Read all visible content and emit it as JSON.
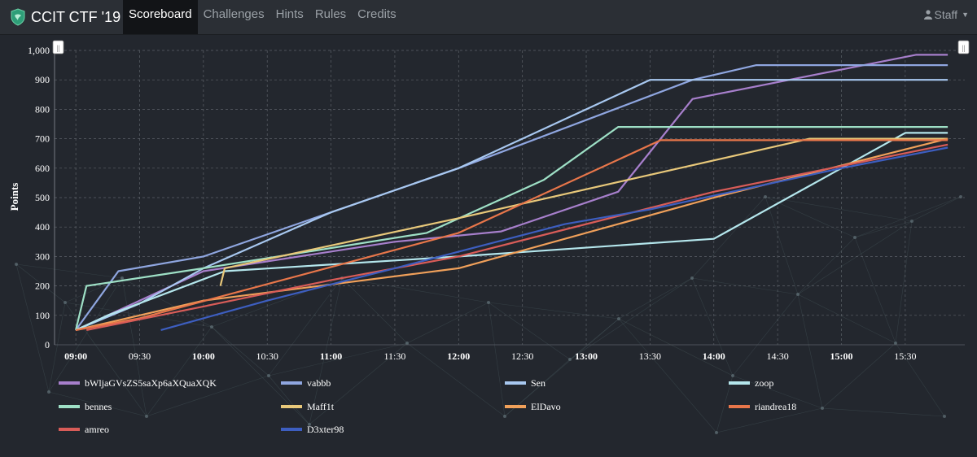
{
  "app": {
    "title": "CCIT CTF '19",
    "nav": [
      {
        "label": "Scoreboard",
        "active": true
      },
      {
        "label": "Challenges",
        "active": false
      },
      {
        "label": "Hints",
        "active": false
      },
      {
        "label": "Rules",
        "active": false
      },
      {
        "label": "Credits",
        "active": false
      }
    ],
    "user_menu": "Staff",
    "colors": {
      "brand_icon": "#2e9e78",
      "nav_bg": "#2b2f35",
      "active_bg": "#121417",
      "page_bg": "#23272e"
    }
  },
  "range_handles": {
    "left": "||",
    "right": "||"
  },
  "chart_data": {
    "type": "line",
    "ylabel": "Points",
    "xlabel": "",
    "ylim": [
      0,
      1000
    ],
    "yticks": [
      0,
      100,
      200,
      300,
      400,
      500,
      600,
      700,
      800,
      900,
      1000
    ],
    "ytick_labels": [
      "0",
      "100",
      "200",
      "300",
      "400",
      "500",
      "600",
      "700",
      "800",
      "900",
      "1,000"
    ],
    "xlim": [
      "08:50",
      "15:58"
    ],
    "xticks": [
      {
        "label": "09:00",
        "bold": true
      },
      {
        "label": "09:30",
        "bold": false
      },
      {
        "label": "10:00",
        "bold": true
      },
      {
        "label": "10:30",
        "bold": false
      },
      {
        "label": "11:00",
        "bold": true
      },
      {
        "label": "11:30",
        "bold": false
      },
      {
        "label": "12:00",
        "bold": true
      },
      {
        "label": "12:30",
        "bold": false
      },
      {
        "label": "13:00",
        "bold": true
      },
      {
        "label": "13:30",
        "bold": false
      },
      {
        "label": "14:00",
        "bold": true
      },
      {
        "label": "14:30",
        "bold": false
      },
      {
        "label": "15:00",
        "bold": true
      },
      {
        "label": "15:30",
        "bold": false
      }
    ],
    "grid": true,
    "legend": "bottom",
    "series": [
      {
        "name": "bWljaGVsZS5saXp6aXQuaXQK",
        "color": "#a77fcc",
        "points": [
          [
            "09:00",
            50
          ],
          [
            "09:30",
            150
          ],
          [
            "10:00",
            250
          ],
          [
            "11:30",
            350
          ],
          [
            "12:20",
            385
          ],
          [
            "13:15",
            520
          ],
          [
            "13:50",
            835
          ],
          [
            "15:35",
            985
          ],
          [
            "15:50",
            985
          ]
        ]
      },
      {
        "name": "vabbb",
        "color": "#8fa6e0",
        "points": [
          [
            "09:00",
            50
          ],
          [
            "09:20",
            250
          ],
          [
            "10:00",
            300
          ],
          [
            "12:00",
            600
          ],
          [
            "13:50",
            900
          ],
          [
            "14:20",
            950
          ],
          [
            "15:50",
            950
          ]
        ]
      },
      {
        "name": "Sen",
        "color": "#a8c8f0",
        "points": [
          [
            "09:00",
            50
          ],
          [
            "09:30",
            140
          ],
          [
            "10:00",
            260
          ],
          [
            "11:00",
            450
          ],
          [
            "12:00",
            600
          ],
          [
            "13:30",
            900
          ],
          [
            "15:50",
            900
          ]
        ]
      },
      {
        "name": "zoop",
        "color": "#b4e6ec",
        "points": [
          [
            "09:00",
            50
          ],
          [
            "09:15",
            100
          ],
          [
            "10:10",
            250
          ],
          [
            "12:00",
            300
          ],
          [
            "14:00",
            360
          ],
          [
            "14:35",
            500
          ],
          [
            "15:30",
            720
          ],
          [
            "15:50",
            720
          ]
        ]
      },
      {
        "name": "bennes",
        "color": "#9ee0c6",
        "points": [
          [
            "09:00",
            50
          ],
          [
            "09:05",
            200
          ],
          [
            "10:00",
            260
          ],
          [
            "11:45",
            380
          ],
          [
            "12:40",
            560
          ],
          [
            "13:15",
            740
          ],
          [
            "15:50",
            740
          ]
        ]
      },
      {
        "name": "Maff1t",
        "color": "#e8c87a",
        "points": [
          [
            "10:08",
            200
          ],
          [
            "10:10",
            260
          ],
          [
            "12:00",
            430
          ],
          [
            "14:45",
            700
          ],
          [
            "15:50",
            700
          ]
        ]
      },
      {
        "name": "ElDavo",
        "color": "#f0a05a",
        "points": [
          [
            "09:00",
            50
          ],
          [
            "10:00",
            150
          ],
          [
            "12:00",
            260
          ],
          [
            "14:00",
            500
          ],
          [
            "15:50",
            700
          ]
        ]
      },
      {
        "name": "riandrea18",
        "color": "#e8764a",
        "points": [
          [
            "09:00",
            50
          ],
          [
            "09:30",
            90
          ],
          [
            "12:00",
            380
          ],
          [
            "13:35",
            695
          ],
          [
            "15:50",
            695
          ]
        ]
      },
      {
        "name": "amreo",
        "color": "#d85c58",
        "points": [
          [
            "09:05",
            50
          ],
          [
            "10:00",
            130
          ],
          [
            "11:00",
            220
          ],
          [
            "12:00",
            300
          ],
          [
            "14:00",
            520
          ],
          [
            "15:50",
            680
          ]
        ]
      },
      {
        "name": "D3xter98",
        "color": "#3d5ec0",
        "points": [
          [
            "09:40",
            50
          ],
          [
            "10:30",
            150
          ],
          [
            "11:30",
            260
          ],
          [
            "12:50",
            410
          ],
          [
            "13:30",
            460
          ],
          [
            "15:00",
            600
          ],
          [
            "15:50",
            670
          ]
        ]
      }
    ]
  }
}
